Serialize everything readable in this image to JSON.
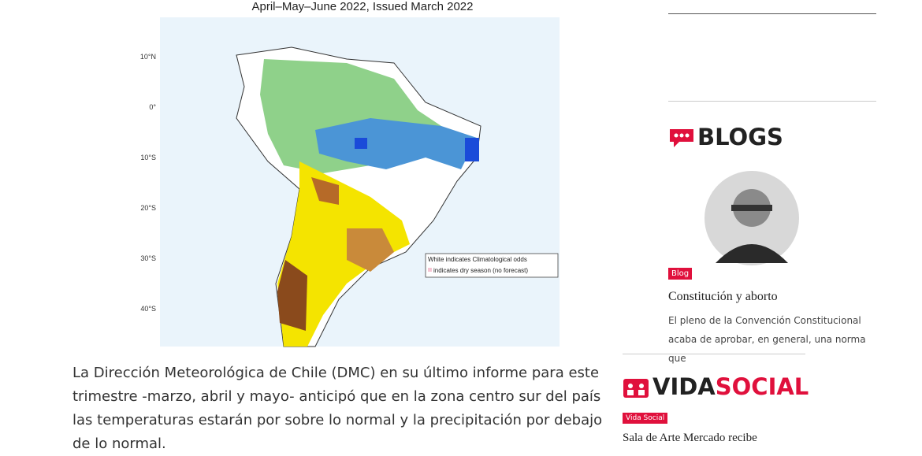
{
  "map": {
    "title": "April–May–June 2022, Issued March 2022",
    "lat_labels": [
      "10°N",
      "0°",
      "10°S",
      "20°S",
      "30°S",
      "40°S"
    ],
    "legend": [
      "White indicates Climatological odds",
      "indicates dry season (no forecast)"
    ]
  },
  "article": {
    "paragraph": "La Dirección Meteorológica de Chile (DMC) en su último informe para este trimestre -marzo, abril y mayo- anticipó que en la zona centro sur del país las temperaturas estarán por sobre lo normal y la precipitación por debajo de lo normal."
  },
  "sidebar": {
    "blogs": {
      "heading": "BLOGS",
      "tag": "Blog",
      "title": "Constitución y aborto",
      "excerpt": "El pleno de la Convención Constitucional acaba de aprobar, en general, una norma que"
    },
    "vidasocial": {
      "heading_a": "VIDA",
      "heading_b": "SOCIAL",
      "tag": "Vida Social",
      "title": "Sala de Arte Mercado recibe"
    }
  }
}
